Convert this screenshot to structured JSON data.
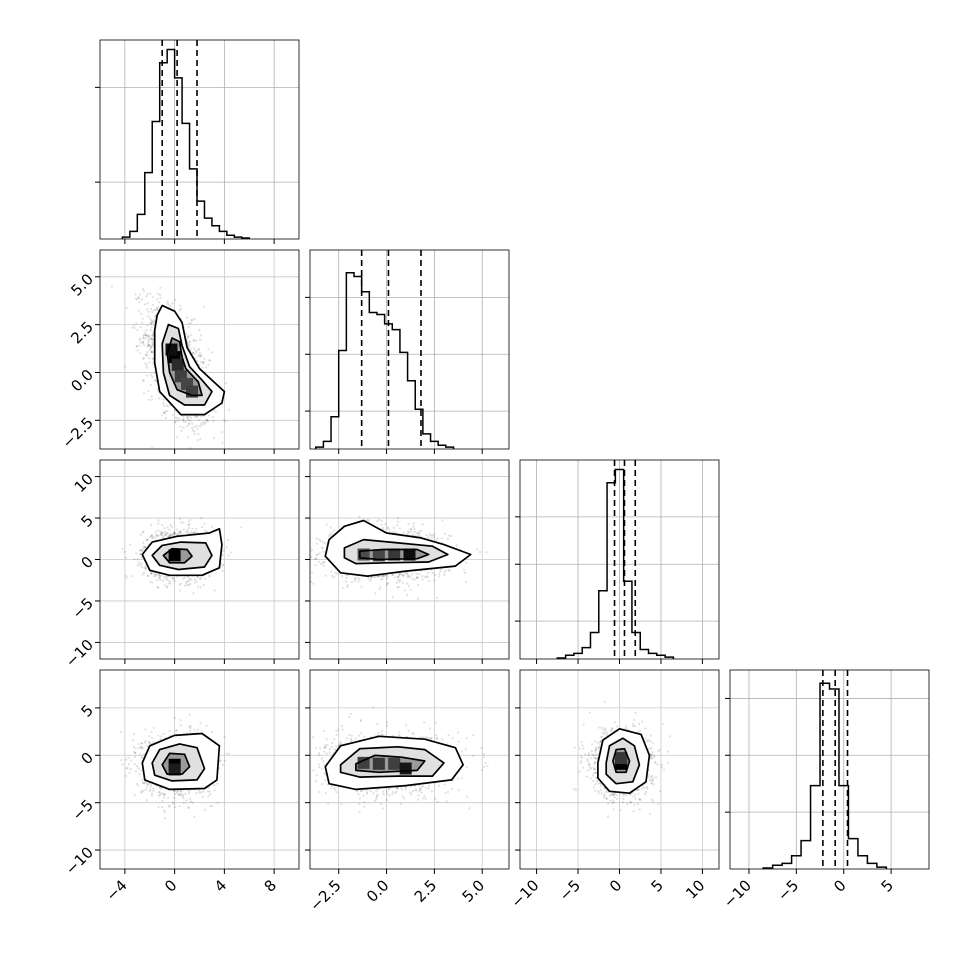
{
  "chart_data": {
    "type": "corner",
    "grid": true,
    "parameters": [
      {
        "range": [
          -6,
          10
        ],
        "ticks": [
          {
            "v": -4,
            "t": "−4"
          },
          {
            "v": 0,
            "t": "0"
          },
          {
            "v": 4,
            "t": "4"
          },
          {
            "v": 8,
            "t": "8"
          }
        ],
        "hist_bin_width": 0.6,
        "hist_start": -4.2,
        "hist": [
          0.01,
          0.04,
          0.13,
          0.35,
          0.62,
          0.93,
          1.0,
          0.85,
          0.61,
          0.37,
          0.2,
          0.11,
          0.07,
          0.04,
          0.02,
          0.01,
          0.005
        ],
        "hist_ylim": [
          0,
          1.05
        ],
        "hist_yticks": [
          0.3,
          0.8
        ],
        "quantiles": [
          -1.0,
          0.2,
          1.8
        ]
      },
      {
        "range": [
          -4,
          6.4
        ],
        "ticks": [
          {
            "v": -2.5,
            "t": "−2.5"
          },
          {
            "v": 0.0,
            "t": "0.0"
          },
          {
            "v": 2.5,
            "t": "2.5"
          },
          {
            "v": 5.0,
            "t": "5.0"
          }
        ],
        "hist_bin_width": 0.4,
        "hist_start": -3.7,
        "hist": [
          0.01,
          0.04,
          0.17,
          0.52,
          0.93,
          0.91,
          0.83,
          0.72,
          0.71,
          0.66,
          0.63,
          0.51,
          0.36,
          0.21,
          0.08,
          0.04,
          0.02,
          0.01
        ],
        "hist_ylim": [
          0,
          1.05
        ],
        "hist_yticks": [
          0.2,
          0.5,
          0.8
        ],
        "quantiles": [
          -1.3,
          0.1,
          1.8
        ]
      },
      {
        "range": [
          -12,
          12
        ],
        "ticks": [
          {
            "v": -10,
            "t": "−10"
          },
          {
            "v": -5,
            "t": "−5"
          },
          {
            "v": 0,
            "t": "0"
          },
          {
            "v": 5,
            "t": "5"
          },
          {
            "v": 10,
            "t": "10"
          }
        ],
        "hist_bin_width": 1.0,
        "hist_start": -7.5,
        "hist": [
          0.005,
          0.02,
          0.03,
          0.06,
          0.14,
          0.36,
          0.93,
          1.0,
          0.41,
          0.14,
          0.05,
          0.03,
          0.02,
          0.01
        ],
        "hist_ylim": [
          0,
          1.05
        ],
        "hist_yticks": [
          0.2,
          0.5,
          0.75
        ],
        "quantiles": [
          -0.6,
          0.6,
          1.9
        ]
      },
      {
        "range": [
          -12,
          9
        ],
        "ticks": [
          {
            "v": -10,
            "t": "−10"
          },
          {
            "v": -5,
            "t": "−5"
          },
          {
            "v": 0,
            "t": "0"
          },
          {
            "v": 5,
            "t": "5"
          }
        ],
        "hist_bin_width": 1.0,
        "hist_start": -8.5,
        "hist": [
          0.005,
          0.02,
          0.03,
          0.07,
          0.15,
          0.44,
          0.98,
          0.95,
          0.44,
          0.16,
          0.07,
          0.03,
          0.01
        ],
        "hist_ylim": [
          0,
          1.05
        ],
        "hist_yticks": [
          0.3,
          0.6,
          0.9
        ],
        "quantiles": [
          -2.2,
          -0.9,
          0.4
        ]
      }
    ],
    "pairs": [
      {
        "row": 1,
        "col": 0,
        "means": [
          0.2,
          0.3
        ],
        "sds": [
          1.3,
          1.6
        ],
        "corr": -0.55,
        "contours": [
          [
            [
              -1.0,
              3.5
            ],
            [
              0.0,
              3.2
            ],
            [
              0.6,
              2.6
            ],
            [
              1.0,
              1.3
            ],
            [
              2.0,
              0.2
            ],
            [
              3.0,
              -0.4
            ],
            [
              4.0,
              -1.0
            ],
            [
              3.8,
              -1.6
            ],
            [
              2.4,
              -2.2
            ],
            [
              0.5,
              -2.2
            ],
            [
              -1.2,
              -1.0
            ],
            [
              -1.6,
              0.5
            ],
            [
              -1.6,
              2.2
            ],
            [
              -1.4,
              3.0
            ]
          ],
          [
            [
              -0.5,
              2.5
            ],
            [
              0.3,
              2.3
            ],
            [
              0.6,
              1.4
            ],
            [
              1.2,
              0.3
            ],
            [
              2.2,
              -0.4
            ],
            [
              3.0,
              -1.0
            ],
            [
              2.4,
              -1.7
            ],
            [
              0.8,
              -1.7
            ],
            [
              -0.4,
              -1.2
            ],
            [
              -0.9,
              0.0
            ],
            [
              -1.0,
              1.5
            ]
          ],
          [
            [
              -0.2,
              1.8
            ],
            [
              0.4,
              1.6
            ],
            [
              0.6,
              0.8
            ],
            [
              0.9,
              0.2
            ],
            [
              1.9,
              -0.5
            ],
            [
              2.2,
              -1.2
            ],
            [
              1.4,
              -1.2
            ],
            [
              0.2,
              -0.9
            ],
            [
              -0.4,
              0.0
            ],
            [
              -0.6,
              1.0
            ]
          ]
        ],
        "cells": [
          [
            0,
            0.8,
            1.0
          ],
          [
            -0.25,
            1.2,
            0.9
          ],
          [
            0.25,
            0.4,
            0.7
          ],
          [
            0.5,
            -0.2,
            0.55
          ],
          [
            1.0,
            -0.6,
            0.5
          ],
          [
            1.4,
            -1.0,
            0.55
          ]
        ]
      },
      {
        "row": 2,
        "col": 0,
        "means": [
          0.3,
          0.6
        ],
        "sds": [
          1.4,
          1.5
        ],
        "corr": 0.0,
        "contours": [
          [
            [
              -2.6,
              0.6
            ],
            [
              -1.8,
              2.1
            ],
            [
              0.2,
              2.8
            ],
            [
              2.8,
              3.2
            ],
            [
              3.6,
              3.7
            ],
            [
              3.8,
              1.8
            ],
            [
              3.6,
              -1.0
            ],
            [
              2.2,
              -1.9
            ],
            [
              -0.4,
              -1.9
            ],
            [
              -2.0,
              -1.3
            ]
          ],
          [
            [
              -1.8,
              0.5
            ],
            [
              -1.0,
              1.7
            ],
            [
              0.5,
              2.1
            ],
            [
              2.5,
              2.0
            ],
            [
              3.0,
              0.5
            ],
            [
              2.4,
              -0.9
            ],
            [
              0.3,
              -1.2
            ],
            [
              -1.2,
              -0.7
            ]
          ],
          [
            [
              -0.9,
              0.5
            ],
            [
              -0.2,
              1.3
            ],
            [
              1.0,
              1.2
            ],
            [
              1.4,
              0.4
            ],
            [
              0.8,
              -0.4
            ],
            [
              -0.4,
              -0.4
            ]
          ]
        ],
        "cells": [
          [
            0,
            0.5,
            1.0
          ]
        ]
      },
      {
        "row": 2,
        "col": 1,
        "means": [
          0.0,
          0.6
        ],
        "sds": [
          1.6,
          1.5
        ],
        "corr": -0.05,
        "contours": [
          [
            [
              -3.0,
              2.4
            ],
            [
              -2.2,
              4.0
            ],
            [
              -1.2,
              4.7
            ],
            [
              0.0,
              3.2
            ],
            [
              1.8,
              2.6
            ],
            [
              3.0,
              1.8
            ],
            [
              4.4,
              0.6
            ],
            [
              3.6,
              -0.8
            ],
            [
              1.0,
              -1.4
            ],
            [
              -1.0,
              -2.0
            ],
            [
              -2.4,
              -1.6
            ],
            [
              -3.2,
              0.4
            ]
          ],
          [
            [
              -2.2,
              1.4
            ],
            [
              -1.2,
              2.4
            ],
            [
              0.6,
              2.0
            ],
            [
              2.4,
              1.6
            ],
            [
              3.2,
              0.6
            ],
            [
              2.2,
              -0.3
            ],
            [
              0.0,
              -0.4
            ],
            [
              -1.6,
              -0.5
            ],
            [
              -2.2,
              0.2
            ]
          ],
          [
            [
              -1.4,
              1.0
            ],
            [
              -0.2,
              1.2
            ],
            [
              1.6,
              1.2
            ],
            [
              2.2,
              0.6
            ],
            [
              1.6,
              0.1
            ],
            [
              -0.4,
              0.0
            ],
            [
              -1.4,
              0.2
            ]
          ]
        ],
        "cells": [
          [
            -1.2,
            0.6,
            0.45
          ],
          [
            -0.4,
            0.5,
            0.5
          ],
          [
            0.4,
            0.6,
            0.6
          ],
          [
            1.2,
            0.6,
            0.9
          ]
        ]
      },
      {
        "row": 3,
        "col": 0,
        "means": [
          0.2,
          -1.0
        ],
        "sds": [
          1.4,
          1.6
        ],
        "corr": 0.0,
        "contours": [
          [
            [
              -2.6,
              -0.8
            ],
            [
              -2.0,
              1.0
            ],
            [
              0.0,
              2.1
            ],
            [
              2.2,
              2.3
            ],
            [
              3.6,
              1.0
            ],
            [
              3.4,
              -2.6
            ],
            [
              2.4,
              -3.5
            ],
            [
              -0.4,
              -3.6
            ],
            [
              -2.4,
              -2.6
            ]
          ],
          [
            [
              -1.8,
              -0.8
            ],
            [
              -1.2,
              0.6
            ],
            [
              0.4,
              1.2
            ],
            [
              1.8,
              0.8
            ],
            [
              2.4,
              -1.4
            ],
            [
              1.8,
              -2.6
            ],
            [
              -0.2,
              -2.7
            ],
            [
              -1.6,
              -2.1
            ]
          ],
          [
            [
              -1.0,
              -1.0
            ],
            [
              -0.4,
              0.2
            ],
            [
              0.8,
              0.1
            ],
            [
              1.2,
              -1.2
            ],
            [
              0.6,
              -2.0
            ],
            [
              -0.6,
              -2.0
            ]
          ]
        ],
        "cells": [
          [
            0,
            -1.0,
            1.0
          ],
          [
            0,
            -1.5,
            0.8
          ]
        ]
      },
      {
        "row": 3,
        "col": 1,
        "means": [
          0.0,
          -1.0
        ],
        "sds": [
          1.6,
          1.6
        ],
        "corr": 0.0,
        "contours": [
          [
            [
              -3.2,
              -1.2
            ],
            [
              -2.4,
              1.0
            ],
            [
              -0.4,
              2.0
            ],
            [
              2.0,
              1.7
            ],
            [
              3.6,
              0.8
            ],
            [
              4.0,
              -1.0
            ],
            [
              3.4,
              -2.6
            ],
            [
              1.0,
              -3.2
            ],
            [
              -1.6,
              -3.6
            ],
            [
              -3.0,
              -3.0
            ]
          ],
          [
            [
              -2.4,
              -1.0
            ],
            [
              -1.4,
              0.7
            ],
            [
              0.6,
              0.9
            ],
            [
              2.0,
              0.6
            ],
            [
              3.0,
              -0.8
            ],
            [
              2.4,
              -2.2
            ],
            [
              0.6,
              -2.2
            ],
            [
              -1.4,
              -2.3
            ],
            [
              -2.4,
              -1.8
            ]
          ],
          [
            [
              -1.6,
              -0.9
            ],
            [
              -0.6,
              0.0
            ],
            [
              0.8,
              -0.2
            ],
            [
              2.0,
              -0.6
            ],
            [
              1.6,
              -1.6
            ],
            [
              -0.4,
              -1.8
            ],
            [
              -1.6,
              -1.6
            ]
          ]
        ],
        "cells": [
          [
            -1.2,
            -0.8,
            0.55
          ],
          [
            -0.4,
            -0.9,
            0.6
          ],
          [
            0.4,
            -0.9,
            0.55
          ],
          [
            1.0,
            -1.4,
            0.85
          ]
        ]
      },
      {
        "row": 3,
        "col": 2,
        "means": [
          0.3,
          -0.9
        ],
        "sds": [
          1.8,
          1.7
        ],
        "corr": 0.0,
        "contours": [
          [
            [
              -2.6,
              -0.8
            ],
            [
              -2.0,
              1.6
            ],
            [
              0.0,
              2.8
            ],
            [
              2.6,
              2.2
            ],
            [
              3.6,
              0.0
            ],
            [
              3.2,
              -2.8
            ],
            [
              1.2,
              -4.0
            ],
            [
              -1.2,
              -3.8
            ],
            [
              -2.6,
              -2.4
            ]
          ],
          [
            [
              -1.6,
              -0.8
            ],
            [
              -1.2,
              1.0
            ],
            [
              0.4,
              1.8
            ],
            [
              1.8,
              1.0
            ],
            [
              2.4,
              -1.0
            ],
            [
              1.6,
              -2.8
            ],
            [
              -0.4,
              -3.0
            ],
            [
              -1.6,
              -2.0
            ]
          ],
          [
            [
              -0.8,
              -0.6
            ],
            [
              -0.4,
              0.6
            ],
            [
              0.6,
              0.7
            ],
            [
              1.2,
              -0.6
            ],
            [
              0.8,
              -1.8
            ],
            [
              -0.4,
              -1.8
            ]
          ]
        ],
        "cells": [
          [
            0.2,
            -0.9,
            1.0
          ],
          [
            0.2,
            -0.3,
            0.6
          ]
        ]
      }
    ]
  }
}
